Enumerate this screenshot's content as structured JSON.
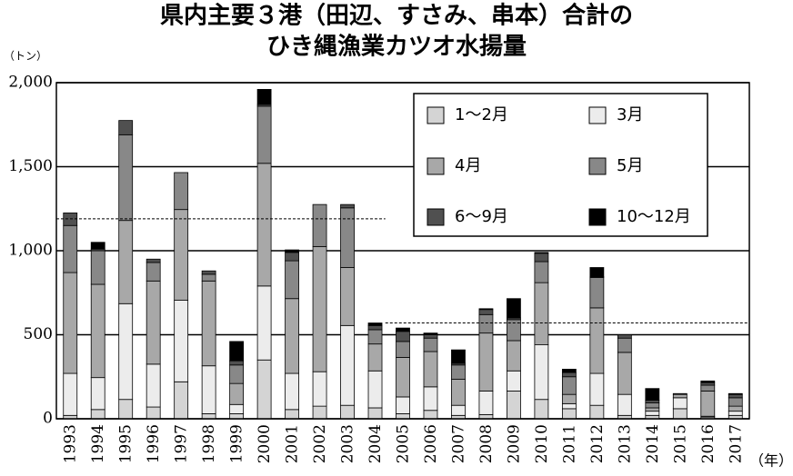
{
  "chart_data": {
    "type": "stacked_bar",
    "title": [
      "県内主要３港（田辺、すさみ、串本）合計の",
      "ひき縄漁業カツオ水揚量"
    ],
    "y_unit": "（トン）",
    "x_unit": "（年）",
    "categories": [
      "1993",
      "1994",
      "1995",
      "1996",
      "1997",
      "1998",
      "1999",
      "2000",
      "2001",
      "2002",
      "2003",
      "2004",
      "2005",
      "2006",
      "2007",
      "2008",
      "2009",
      "2010",
      "2011",
      "2012",
      "2013",
      "2014",
      "2015",
      "2016",
      "2017"
    ],
    "series": [
      {
        "name": "1～2月",
        "color": "#d4d4d4",
        "values": [
          20,
          55,
          115,
          70,
          220,
          30,
          30,
          350,
          55,
          75,
          80,
          65,
          30,
          50,
          20,
          25,
          165,
          115,
          60,
          80,
          20,
          20,
          60,
          10,
          20
        ]
      },
      {
        "name": "3月",
        "color": "#ececec",
        "values": [
          250,
          190,
          570,
          255,
          485,
          285,
          55,
          440,
          215,
          205,
          475,
          220,
          100,
          140,
          60,
          140,
          120,
          325,
          30,
          190,
          125,
          25,
          65,
          5,
          25
        ]
      },
      {
        "name": "4月",
        "color": "#a8a8a8",
        "values": [
          600,
          555,
          495,
          495,
          540,
          505,
          125,
          730,
          445,
          745,
          345,
          160,
          235,
          210,
          155,
          345,
          180,
          370,
          55,
          390,
          250,
          20,
          20,
          150,
          30
        ]
      },
      {
        "name": "5月",
        "color": "#888888",
        "values": [
          280,
          200,
          510,
          110,
          220,
          40,
          110,
          340,
          225,
          250,
          355,
          85,
          95,
          80,
          85,
          110,
          125,
          125,
          105,
          180,
          85,
          30,
          5,
          35,
          50
        ]
      },
      {
        "name": "6～9月",
        "color": "#505050",
        "values": [
          75,
          10,
          85,
          20,
          0,
          20,
          25,
          10,
          50,
          0,
          20,
          25,
          60,
          20,
          10,
          30,
          10,
          50,
          25,
          5,
          20,
          15,
          0,
          15,
          20
        ]
      },
      {
        "name": "10～12月",
        "color": "#000000",
        "values": [
          0,
          40,
          0,
          0,
          0,
          0,
          115,
          90,
          15,
          0,
          0,
          15,
          20,
          10,
          80,
          5,
          115,
          5,
          20,
          55,
          0,
          70,
          0,
          10,
          5
        ]
      }
    ],
    "ylim": [
      0,
      2000
    ],
    "yticks": [
      0,
      {
        "value": 500,
        "label": "500"
      },
      {
        "value": 1000,
        "label": "1,000"
      },
      {
        "value": 1500,
        "label": "1,500"
      },
      {
        "value": 2000,
        "label": "2,000"
      }
    ],
    "grid": true,
    "legend": "upper right",
    "reference_lines": [
      {
        "value": 1190,
        "start": "1993",
        "end": "2004"
      },
      {
        "value": 570,
        "start": "2005",
        "end": "2017"
      }
    ]
  }
}
